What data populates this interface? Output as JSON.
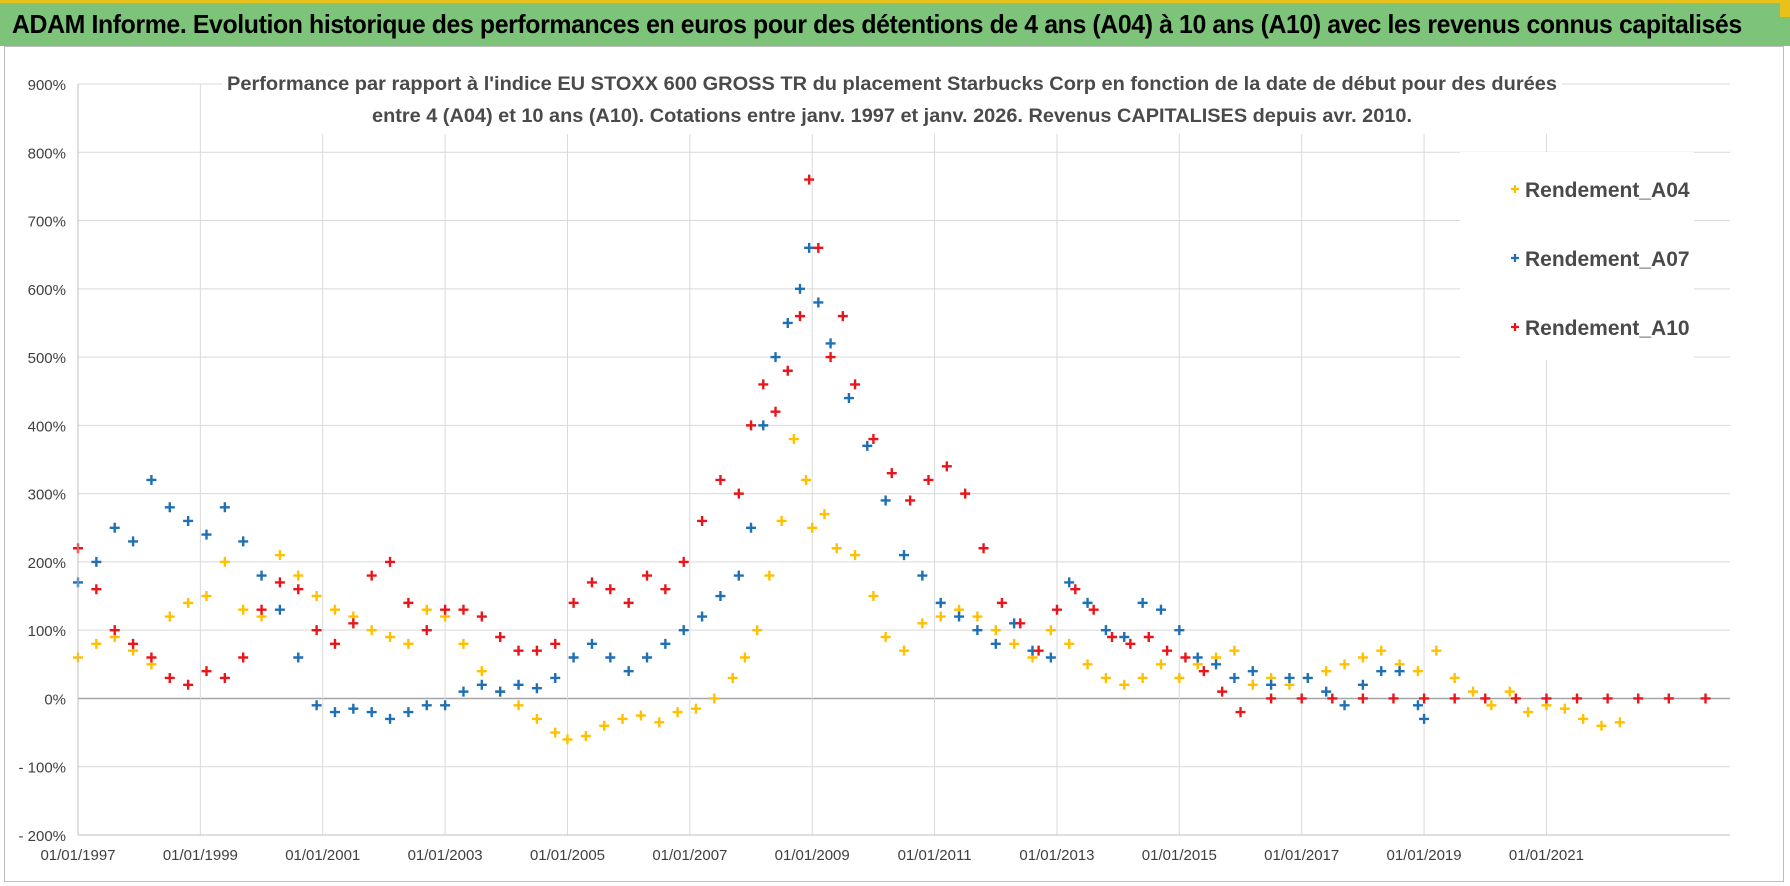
{
  "header": {
    "title": "ADAM Informe. Evolution historique des performances en euros pour des détentions de 4 ans (A04) à 10 ans (A10) avec les revenus connus capitalisés"
  },
  "colors": {
    "banner": "#7dc47a",
    "accent": "#e8c21a",
    "A04": "#ffc000",
    "A07": "#1f6fb4",
    "A10": "#e8161b",
    "grid": "#d9d9d9"
  },
  "chart_data": {
    "type": "scatter",
    "title_line1": "Performance par rapport à l'indice EU STOXX 600 GROSS TR  du placement Starbucks Corp en fonction de la date de début pour des durées",
    "title_line2": "entre 4 (A04) et 10 ans (A10).  Cotations entre janv. 1997 et janv. 2026. Revenus CAPITALISES depuis avr. 2010.",
    "xlabel": "",
    "ylabel": "",
    "xlim": [
      1997.0,
      2024.0
    ],
    "ylim": [
      -200,
      900
    ],
    "y_ticks": [
      -200,
      -100,
      0,
      100,
      200,
      300,
      400,
      500,
      600,
      700,
      800,
      900
    ],
    "y_tick_labels": [
      "- 200%",
      "- 100%",
      "0%",
      "100%",
      "200%",
      "300%",
      "400%",
      "500%",
      "600%",
      "700%",
      "800%",
      "900%"
    ],
    "x_ticks": [
      1997,
      1999,
      2001,
      2003,
      2005,
      2007,
      2009,
      2011,
      2013,
      2015,
      2017,
      2019,
      2021
    ],
    "x_tick_labels": [
      "01/01/1997",
      "01/01/1999",
      "01/01/2001",
      "01/01/2003",
      "01/01/2005",
      "01/01/2007",
      "01/01/2009",
      "01/01/2011",
      "01/01/2013",
      "01/01/2015",
      "01/01/2017",
      "01/01/2019",
      "01/01/2021"
    ],
    "legend_position": "top-right",
    "series": [
      {
        "name": "Rendement_A04",
        "color": "#ffc000",
        "x": [
          1997.0,
          1997.3,
          1997.6,
          1997.9,
          1998.2,
          1998.5,
          1998.8,
          1999.1,
          1999.4,
          1999.7,
          2000.0,
          2000.3,
          2000.6,
          2000.9,
          2001.2,
          2001.5,
          2001.8,
          2002.1,
          2002.4,
          2002.7,
          2003.0,
          2003.3,
          2003.6,
          2003.9,
          2004.2,
          2004.5,
          2004.8,
          2005.0,
          2005.3,
          2005.6,
          2005.9,
          2006.2,
          2006.5,
          2006.8,
          2007.1,
          2007.4,
          2007.7,
          2007.9,
          2008.1,
          2008.3,
          2008.5,
          2008.7,
          2008.9,
          2009.0,
          2009.2,
          2009.4,
          2009.7,
          2010.0,
          2010.2,
          2010.5,
          2010.8,
          2011.1,
          2011.4,
          2011.7,
          2012.0,
          2012.3,
          2012.6,
          2012.9,
          2013.2,
          2013.5,
          2013.8,
          2014.1,
          2014.4,
          2014.7,
          2015.0,
          2015.3,
          2015.6,
          2015.9,
          2016.2,
          2016.5,
          2016.8,
          2017.1,
          2017.4,
          2017.7,
          2018.0,
          2018.3,
          2018.6,
          2018.9,
          2019.2,
          2019.5,
          2019.8,
          2020.1,
          2020.4,
          2020.7,
          2021.0,
          2021.3,
          2021.6,
          2021.9,
          2022.2
        ],
        "y": [
          60,
          80,
          90,
          70,
          50,
          120,
          140,
          150,
          200,
          130,
          120,
          210,
          180,
          150,
          130,
          120,
          100,
          90,
          80,
          130,
          120,
          80,
          40,
          10,
          -10,
          -30,
          -50,
          -60,
          -55,
          -40,
          -30,
          -25,
          -35,
          -20,
          -15,
          0,
          30,
          60,
          100,
          180,
          260,
          380,
          320,
          250,
          270,
          220,
          210,
          150,
          90,
          70,
          110,
          120,
          130,
          120,
          100,
          80,
          60,
          100,
          80,
          50,
          30,
          20,
          30,
          50,
          30,
          50,
          60,
          70,
          20,
          30,
          20,
          30,
          40,
          50,
          60,
          70,
          50,
          40,
          70,
          30,
          10,
          -10,
          10,
          -20,
          -10,
          -15,
          -30,
          -40,
          -35
        ]
      },
      {
        "name": "Rendement_A07",
        "color": "#1f6fb4",
        "x": [
          1997.0,
          1997.3,
          1997.6,
          1997.9,
          1998.2,
          1998.5,
          1998.8,
          1999.1,
          1999.4,
          1999.7,
          2000.0,
          2000.3,
          2000.6,
          2000.9,
          2001.2,
          2001.5,
          2001.8,
          2002.1,
          2002.4,
          2002.7,
          2003.0,
          2003.3,
          2003.6,
          2003.9,
          2004.2,
          2004.5,
          2004.8,
          2005.1,
          2005.4,
          2005.7,
          2006.0,
          2006.3,
          2006.6,
          2006.9,
          2007.2,
          2007.5,
          2007.8,
          2008.0,
          2008.2,
          2008.4,
          2008.6,
          2008.8,
          2008.95,
          2009.1,
          2009.3,
          2009.6,
          2009.9,
          2010.2,
          2010.5,
          2010.8,
          2011.1,
          2011.4,
          2011.7,
          2012.0,
          2012.3,
          2012.6,
          2012.9,
          2013.2,
          2013.5,
          2013.8,
          2014.1,
          2014.4,
          2014.7,
          2015.0,
          2015.3,
          2015.6,
          2015.9,
          2016.2,
          2016.5,
          2016.8,
          2017.1,
          2017.4,
          2017.7,
          2018.0,
          2018.3,
          2018.6,
          2018.9,
          2019.0
        ],
        "y": [
          170,
          200,
          250,
          230,
          320,
          280,
          260,
          240,
          280,
          230,
          180,
          130,
          60,
          -10,
          -20,
          -15,
          -20,
          -30,
          -20,
          -10,
          -10,
          10,
          20,
          10,
          20,
          15,
          30,
          60,
          80,
          60,
          40,
          60,
          80,
          100,
          120,
          150,
          180,
          250,
          400,
          500,
          550,
          600,
          660,
          580,
          520,
          440,
          370,
          290,
          210,
          180,
          140,
          120,
          100,
          80,
          110,
          70,
          60,
          170,
          140,
          100,
          90,
          140,
          130,
          100,
          60,
          50,
          30,
          40,
          20,
          30,
          30,
          10,
          -10,
          20,
          40,
          40,
          -10,
          -30
        ]
      },
      {
        "name": "Rendement_A10",
        "color": "#e8161b",
        "x": [
          1997.0,
          1997.3,
          1997.6,
          1997.9,
          1998.2,
          1998.5,
          1998.8,
          1999.1,
          1999.4,
          1999.7,
          2000.0,
          2000.3,
          2000.6,
          2000.9,
          2001.2,
          2001.5,
          2001.8,
          2002.1,
          2002.4,
          2002.7,
          2003.0,
          2003.3,
          2003.6,
          2003.9,
          2004.2,
          2004.5,
          2004.8,
          2005.1,
          2005.4,
          2005.7,
          2006.0,
          2006.3,
          2006.6,
          2006.9,
          2007.2,
          2007.5,
          2007.8,
          2008.0,
          2008.2,
          2008.4,
          2008.6,
          2008.8,
          2008.95,
          2009.1,
          2009.3,
          2009.5,
          2009.7,
          2010.0,
          2010.3,
          2010.6,
          2010.9,
          2011.2,
          2011.5,
          2011.8,
          2012.1,
          2012.4,
          2012.7,
          2013.0,
          2013.3,
          2013.6,
          2013.9,
          2014.2,
          2014.5,
          2014.8,
          2015.1,
          2015.4,
          2015.7,
          2016.0,
          2016.5,
          2017.0,
          2017.5,
          2018.0,
          2018.5,
          2019.0,
          2019.5,
          2020.0,
          2020.5,
          2021.0,
          2021.5,
          2022.0,
          2022.5,
          2023.0,
          2023.6
        ],
        "y": [
          220,
          160,
          100,
          80,
          60,
          30,
          20,
          40,
          30,
          60,
          130,
          170,
          160,
          100,
          80,
          110,
          180,
          200,
          140,
          100,
          130,
          130,
          120,
          90,
          70,
          70,
          80,
          140,
          170,
          160,
          140,
          180,
          160,
          200,
          260,
          320,
          300,
          400,
          460,
          420,
          480,
          560,
          760,
          660,
          500,
          560,
          460,
          380,
          330,
          290,
          320,
          340,
          300,
          220,
          140,
          110,
          70,
          130,
          160,
          130,
          90,
          80,
          90,
          70,
          60,
          40,
          10,
          -20,
          0,
          0,
          0,
          0,
          0,
          0,
          0,
          0,
          0,
          0,
          0,
          0,
          0,
          0,
          0
        ]
      }
    ]
  }
}
